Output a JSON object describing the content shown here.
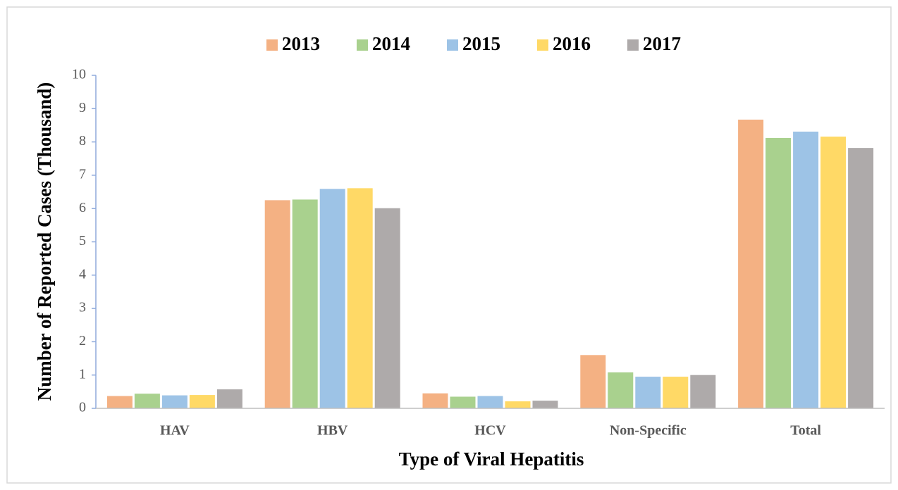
{
  "chart_data": {
    "type": "bar",
    "x_label": "Type of Viral Hepatitis",
    "y_label": "Number of Reported Cases (Thousand)",
    "categories": [
      "HAV",
      "HBV",
      "HCV",
      "Non-Specific",
      "Total"
    ],
    "series": [
      {
        "name": "2013",
        "color": "#f4b183",
        "values": [
          0.37,
          6.25,
          0.45,
          1.6,
          8.67
        ]
      },
      {
        "name": "2014",
        "color": "#a9d18e",
        "values": [
          0.44,
          6.27,
          0.35,
          1.08,
          8.12
        ]
      },
      {
        "name": "2015",
        "color": "#9dc3e6",
        "values": [
          0.39,
          6.59,
          0.37,
          0.95,
          8.31
        ]
      },
      {
        "name": "2016",
        "color": "#ffd966",
        "values": [
          0.4,
          6.61,
          0.21,
          0.95,
          8.16
        ]
      },
      {
        "name": "2017",
        "color": "#aeaaaa",
        "values": [
          0.57,
          6.01,
          0.23,
          1.0,
          7.82
        ]
      }
    ],
    "ylim": [
      0,
      10
    ],
    "yticks": [
      0,
      1,
      2,
      3,
      4,
      5,
      6,
      7,
      8,
      9,
      10
    ],
    "grid": false,
    "legend": "top"
  }
}
